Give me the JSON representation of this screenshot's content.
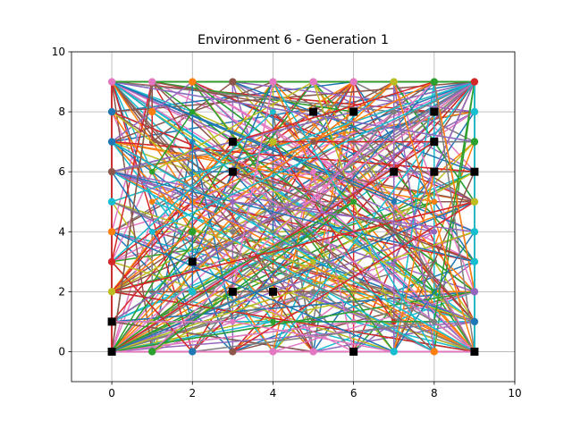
{
  "chart_data": {
    "type": "line",
    "title": "Environment 6 - Generation 1",
    "xlabel": "",
    "ylabel": "",
    "xlim": [
      -1,
      10
    ],
    "ylim": [
      -1,
      10
    ],
    "xticks": [
      0,
      2,
      4,
      6,
      8,
      10
    ],
    "yticks": [
      0,
      2,
      4,
      6,
      8,
      10
    ],
    "grid": true,
    "legend": "none",
    "series_colors": [
      "#1f77b4",
      "#ff7f0e",
      "#2ca02c",
      "#d62728",
      "#9467bd",
      "#8c564b",
      "#e377c2",
      "#7f7f7f",
      "#bcbd22",
      "#17becf"
    ],
    "obstacle_color": "#000000",
    "obstacles": [
      [
        0,
        0
      ],
      [
        0,
        1
      ],
      [
        2,
        3
      ],
      [
        3,
        2
      ],
      [
        3,
        6
      ],
      [
        3,
        7
      ],
      [
        4,
        2
      ],
      [
        5,
        8
      ],
      [
        6,
        0
      ],
      [
        6,
        8
      ],
      [
        7,
        6
      ],
      [
        8,
        6
      ],
      [
        8,
        7
      ],
      [
        8,
        8
      ],
      [
        9,
        0
      ],
      [
        9,
        6
      ]
    ],
    "nodes": [
      {
        "x": 0,
        "y": 9,
        "color": "#e377c2"
      },
      {
        "x": 1,
        "y": 9,
        "color": "#e377c2"
      },
      {
        "x": 2,
        "y": 9,
        "color": "#ff7f0e"
      },
      {
        "x": 3,
        "y": 9,
        "color": "#8c564b"
      },
      {
        "x": 4,
        "y": 9,
        "color": "#e377c2"
      },
      {
        "x": 5,
        "y": 9,
        "color": "#e377c2"
      },
      {
        "x": 6,
        "y": 9,
        "color": "#e377c2"
      },
      {
        "x": 7,
        "y": 9,
        "color": "#bcbd22"
      },
      {
        "x": 8,
        "y": 9,
        "color": "#2ca02c"
      },
      {
        "x": 9,
        "y": 9,
        "color": "#d62728"
      },
      {
        "x": 0,
        "y": 8,
        "color": "#1f77b4"
      },
      {
        "x": 1,
        "y": 8,
        "color": "#ff7f0e"
      },
      {
        "x": 9,
        "y": 8,
        "color": "#17becf"
      },
      {
        "x": 0,
        "y": 7,
        "color": "#1f77b4"
      },
      {
        "x": 9,
        "y": 7,
        "color": "#2ca02c"
      },
      {
        "x": 0,
        "y": 6,
        "color": "#8c564b"
      },
      {
        "x": 4,
        "y": 7,
        "color": "#bcbd22"
      },
      {
        "x": 0,
        "y": 5,
        "color": "#17becf"
      },
      {
        "x": 9,
        "y": 5,
        "color": "#bcbd22"
      },
      {
        "x": 0,
        "y": 4,
        "color": "#ff7f0e"
      },
      {
        "x": 9,
        "y": 4,
        "color": "#17becf"
      },
      {
        "x": 0,
        "y": 3,
        "color": "#d62728"
      },
      {
        "x": 9,
        "y": 3,
        "color": "#17becf"
      },
      {
        "x": 0,
        "y": 2,
        "color": "#bcbd22"
      },
      {
        "x": 9,
        "y": 2,
        "color": "#9467bd"
      },
      {
        "x": 2,
        "y": 2,
        "color": "#17becf"
      },
      {
        "x": 2,
        "y": 4,
        "color": "#2ca02c"
      },
      {
        "x": 9,
        "y": 1,
        "color": "#1f77b4"
      },
      {
        "x": 1,
        "y": 0,
        "color": "#2ca02c"
      },
      {
        "x": 2,
        "y": 0,
        "color": "#1f77b4"
      },
      {
        "x": 3,
        "y": 0,
        "color": "#8c564b"
      },
      {
        "x": 4,
        "y": 0,
        "color": "#e377c2"
      },
      {
        "x": 5,
        "y": 0,
        "color": "#e377c2"
      },
      {
        "x": 7,
        "y": 0,
        "color": "#17becf"
      },
      {
        "x": 8,
        "y": 0,
        "color": "#ff7f0e"
      }
    ],
    "paths_count": 260,
    "paths_seed": 6
  }
}
